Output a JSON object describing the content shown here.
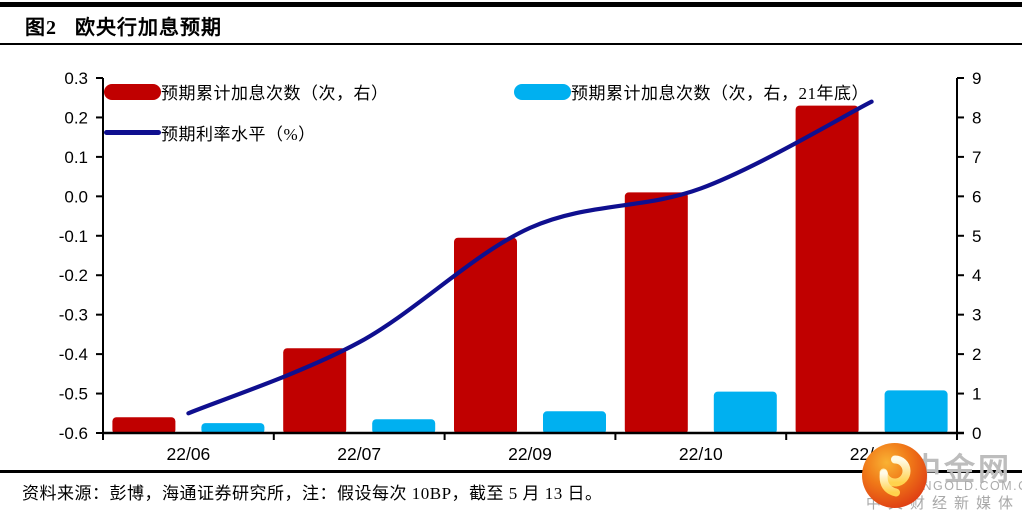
{
  "figure": {
    "label": "图2",
    "title": "欧央行加息预期"
  },
  "legend": {
    "items": [
      {
        "label": "预期累计加息次数（次，右）",
        "type": "bar",
        "color": "#c00000"
      },
      {
        "label": "预期累计加息次数（次，右，21年底）",
        "type": "bar",
        "color": "#00b0f0"
      },
      {
        "label": "预期利率水平（%）",
        "type": "line",
        "color": "#0f0f8f"
      }
    ]
  },
  "footer": {
    "source_note": "资料来源：彭博，海通证券研究所，注：假设每次 10BP，截至 5 月 13 日。"
  },
  "watermark": {
    "brand": "中金网",
    "domain": "CNGOLD.COM.CN",
    "tagline": "中文财经新媒体"
  },
  "chart_data": {
    "type": "bar",
    "subtype": "grouped bars with smoothed line overlay, dual y-axis",
    "categories": [
      "22/06",
      "22/07",
      "22/09",
      "22/10",
      "22/12"
    ],
    "series": [
      {
        "name": "预期累计加息次数（次，右）",
        "type": "bar",
        "axis": "right",
        "color": "#c00000",
        "values": [
          0.4,
          2.15,
          4.95,
          6.1,
          8.3
        ]
      },
      {
        "name": "预期累计加息次数（次，右，21年底）",
        "type": "bar",
        "axis": "right",
        "color": "#00b0f0",
        "values": [
          0.25,
          0.35,
          0.55,
          1.05,
          1.08
        ]
      },
      {
        "name": "预期利率水平（%）",
        "type": "line",
        "axis": "left",
        "color": "#0f0f8f",
        "values": [
          -0.55,
          -0.37,
          -0.08,
          0.02,
          0.24
        ]
      }
    ],
    "left_axis": {
      "min": -0.6,
      "max": 0.3,
      "step": 0.1,
      "ticks": [
        "0.3",
        "0.2",
        "0.1",
        "0.0",
        "-0.1",
        "-0.2",
        "-0.3",
        "-0.4",
        "-0.5",
        "-0.6"
      ]
    },
    "right_axis": {
      "min": 0,
      "max": 9,
      "step": 1,
      "ticks": [
        "9",
        "8",
        "7",
        "6",
        "5",
        "4",
        "3",
        "2",
        "1",
        "0"
      ]
    },
    "grid": false,
    "legend_position": "top-inside"
  }
}
